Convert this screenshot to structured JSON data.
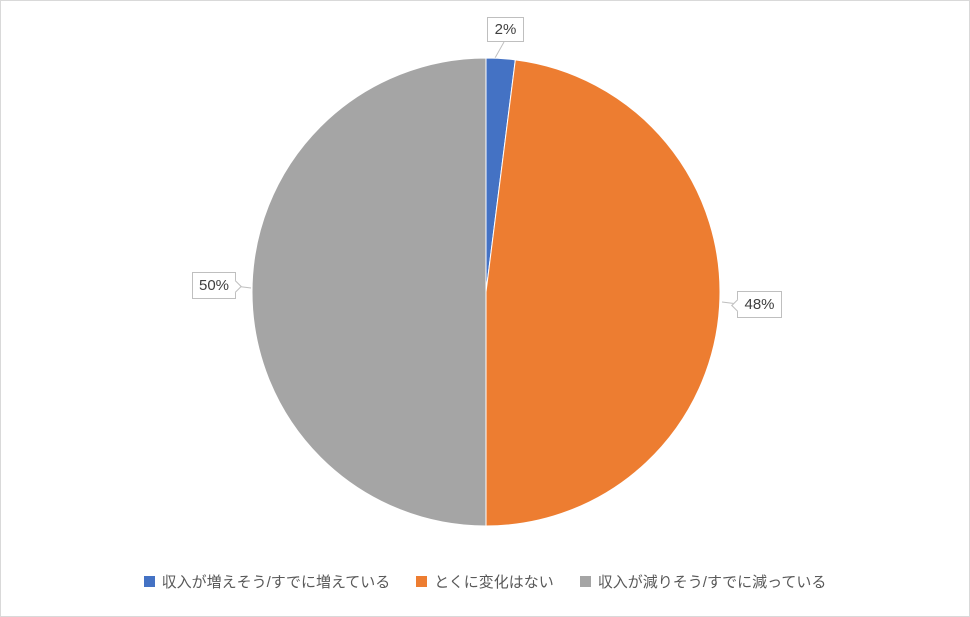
{
  "chart_data": {
    "type": "pie",
    "title": "",
    "categories": [
      "収入が増えそう/すでに増えている",
      "とくに変化はない",
      "収入が減りそう/すでに減っている"
    ],
    "values": [
      2,
      48,
      50
    ],
    "unit": "%",
    "data_labels": [
      "2%",
      "48%",
      "50%"
    ],
    "colors": [
      "#4472C4",
      "#ED7D31",
      "#A5A5A5"
    ],
    "legend_position": "bottom",
    "start_angle_deg": -90,
    "direction": "clockwise",
    "slice_border_color": "#FFFFFF"
  },
  "style_colors": {
    "label_text": "#404040",
    "legend_text": "#595959",
    "callout_border": "#BFBFBF",
    "chart_frame_border": "#D9D9D9"
  }
}
